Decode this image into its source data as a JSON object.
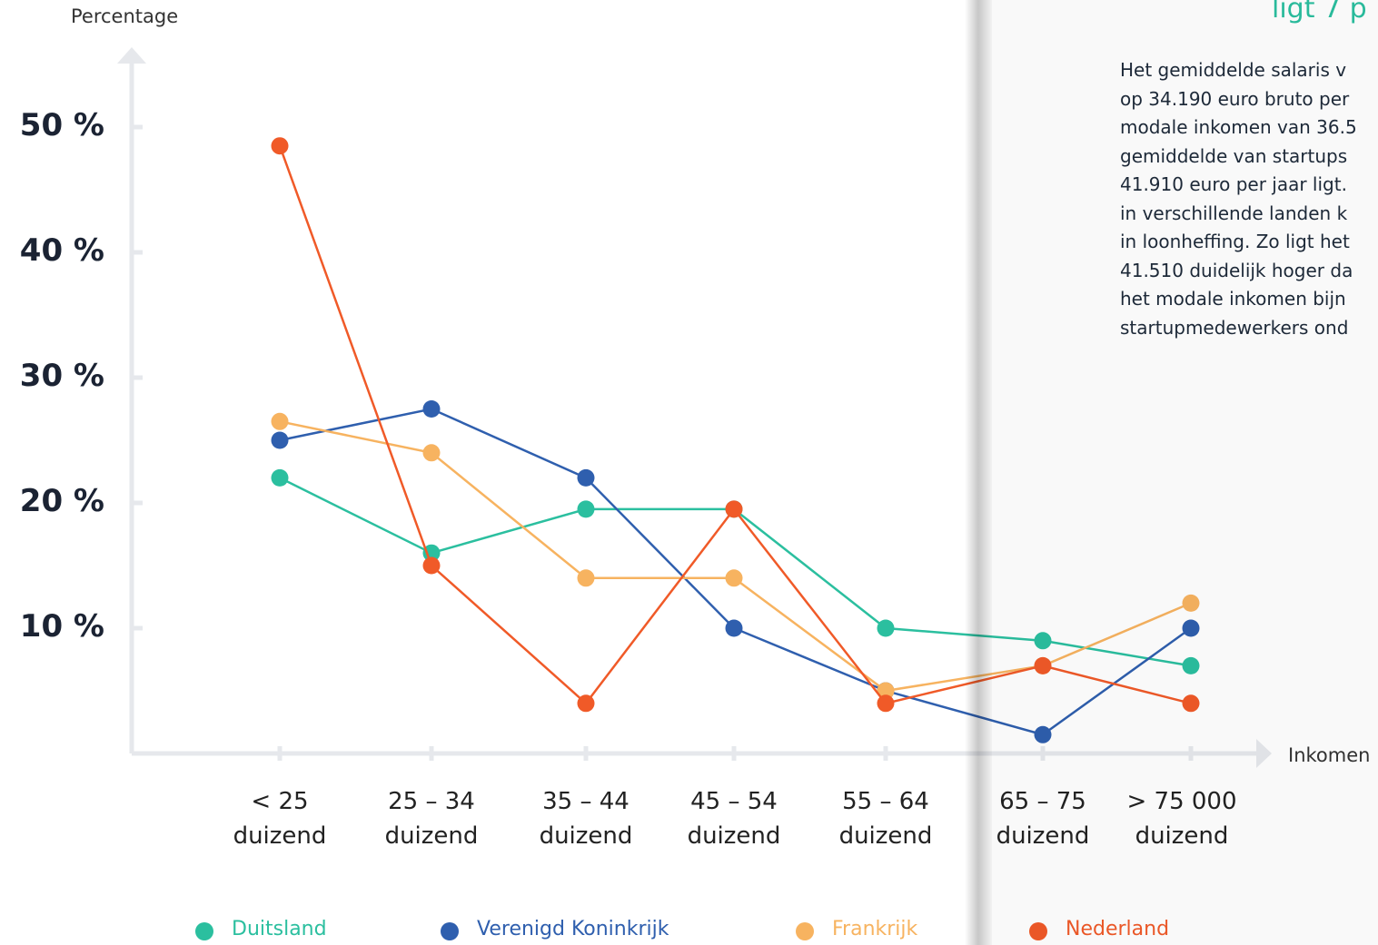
{
  "chart_data": {
    "type": "line",
    "y_label": "Percentage",
    "x_label": "Inkomen",
    "categories": [
      "< 25 duizend",
      "25 – 34 duizend",
      "35 – 44 duizend",
      "45 – 54 duizend",
      "55 – 64 duizend",
      "65 – 75 duizend",
      "> 75 000 duizend"
    ],
    "series": [
      {
        "name": "Duitsland",
        "color": "#2bbf9f",
        "values": [
          22,
          16,
          19.5,
          19.5,
          10,
          9,
          7
        ]
      },
      {
        "name": "Verenigd Koninkrijk",
        "color": "#2f5fae",
        "values": [
          25,
          27.5,
          22,
          10,
          5,
          1.5,
          10
        ]
      },
      {
        "name": "Frankrijk",
        "color": "#f7b360",
        "values": [
          26.5,
          24,
          14,
          14,
          5,
          7,
          12
        ]
      },
      {
        "name": "Nederland",
        "color": "#f05a28",
        "values": [
          48.5,
          15,
          4,
          19.5,
          4,
          7,
          4
        ]
      }
    ],
    "ylim": [
      0,
      55
    ],
    "yticks": [
      {
        "value": 10,
        "label": "10 %"
      },
      {
        "value": 20,
        "label": "20 %"
      },
      {
        "value": 30,
        "label": "30 %"
      },
      {
        "value": 40,
        "label": "40 %"
      },
      {
        "value": 50,
        "label": "50 %"
      }
    ]
  },
  "right_page": {
    "heading": "ligt 7 p",
    "lines": [
      "Het gemiddelde salaris v",
      "op 34.190 euro bruto per",
      "modale inkomen van 36.5",
      "gemiddelde van startups",
      "41.910 euro per jaar ligt.",
      "in verschillende landen k",
      "in loonheffing. Zo ligt het",
      "41.510 duidelijk hoger da",
      "het modale inkomen bijn",
      "startupmedewerkers ond"
    ]
  }
}
